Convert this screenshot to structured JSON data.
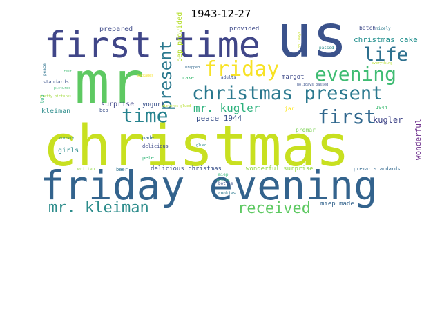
{
  "figure": {
    "title": "1943-12-27"
  },
  "words": [
    {
      "text": "christmas",
      "color": "#c8e020"
    },
    {
      "text": "friday evening",
      "color": "#33638d"
    },
    {
      "text": "mr",
      "color": "#5ec962"
    },
    {
      "text": "us",
      "color": "#3b528b"
    },
    {
      "text": "first time",
      "color": "#404688"
    },
    {
      "text": "christmas present",
      "color": "#2a788e"
    },
    {
      "text": "evening",
      "color": "#3fbc73"
    },
    {
      "text": "friday",
      "color": "#f7e225"
    },
    {
      "text": "life",
      "color": "#2d708e"
    },
    {
      "text": "present",
      "color": "#2a788e"
    },
    {
      "text": "time",
      "color": "#26828e"
    },
    {
      "text": "first",
      "color": "#31688e"
    },
    {
      "text": "mr. kugler",
      "color": "#2db27d"
    },
    {
      "text": "mr. kleiman",
      "color": "#2c8c8b"
    },
    {
      "text": "received",
      "color": "#5ec962"
    },
    {
      "text": "peace 1944",
      "color": "#3b528b"
    },
    {
      "text": "christmas cake",
      "color": "#218f8d"
    },
    {
      "text": "kugler",
      "color": "#404688"
    },
    {
      "text": "wonderful",
      "color": "#6b2b8a"
    },
    {
      "text": "prepared",
      "color": "#3e4a89"
    },
    {
      "text": "provided",
      "color": "#3e4a89"
    },
    {
      "text": "batch",
      "color": "#3e4a89"
    },
    {
      "text": "nicely",
      "color": "#2c7b8e"
    },
    {
      "text": "holidays",
      "color": "#c8e020"
    },
    {
      "text": "passed",
      "color": "#2c8c8b"
    },
    {
      "text": "everything",
      "color": "#b5de2b"
    },
    {
      "text": "surprise",
      "color": "#404688"
    },
    {
      "text": "yogurt",
      "color": "#3b528b"
    },
    {
      "text": "margot",
      "color": "#3e4a89"
    },
    {
      "text": "jar",
      "color": "#fde725"
    },
    {
      "text": "premar",
      "color": "#7ad151"
    },
    {
      "text": "1944",
      "color": "#3fbc73"
    },
    {
      "text": "kleiman",
      "color": "#2c8c8b"
    },
    {
      "text": "girls",
      "color": "#2c8c8b"
    },
    {
      "text": "made",
      "color": "#31688e"
    },
    {
      "text": "delicious",
      "color": "#3e4a89"
    },
    {
      "text": "peter",
      "color": "#35b779"
    },
    {
      "text": "written",
      "color": "#90d743"
    },
    {
      "text": "beer",
      "color": "#2c728e"
    },
    {
      "text": "delicious christmas",
      "color": "#3b528b"
    },
    {
      "text": "wonderful surprise",
      "color": "#90d743"
    },
    {
      "text": "premar standards",
      "color": "#31688e"
    },
    {
      "text": "miep",
      "color": "#35b779"
    },
    {
      "text": "bottle",
      "color": "#3b528b"
    },
    {
      "text": "cookies",
      "color": "#2a788e"
    },
    {
      "text": "miep made",
      "color": "#33638d"
    },
    {
      "text": "adults",
      "color": "#3b528b"
    },
    {
      "text": "standards",
      "color": "#3b528b"
    },
    {
      "text": "pictures",
      "color": "#3fbc73"
    },
    {
      "text": "pretty pictures",
      "color": "#9fda3a"
    },
    {
      "text": "peace",
      "color": "#2c728e"
    },
    {
      "text": "rest",
      "color": "#3fbc73"
    },
    {
      "text": "top",
      "color": "#2db27d"
    },
    {
      "text": "bep",
      "color": "#3b528b"
    },
    {
      "text": "bep provided",
      "color": "#b5de2b"
    },
    {
      "text": "cake",
      "color": "#3fbc73"
    },
    {
      "text": "packages",
      "color": "#f7e225"
    },
    {
      "text": "wrapped",
      "color": "#31688e"
    },
    {
      "text": "pictures glued",
      "color": "#b5de2b"
    },
    {
      "text": "glued",
      "color": "#2c8c8b"
    },
    {
      "text": "quickly",
      "color": "#26828e"
    },
    {
      "text": "holidays passed",
      "color": "#3b528b"
    },
    {
      "text": "pretty",
      "color": "#35b779"
    }
  ]
}
